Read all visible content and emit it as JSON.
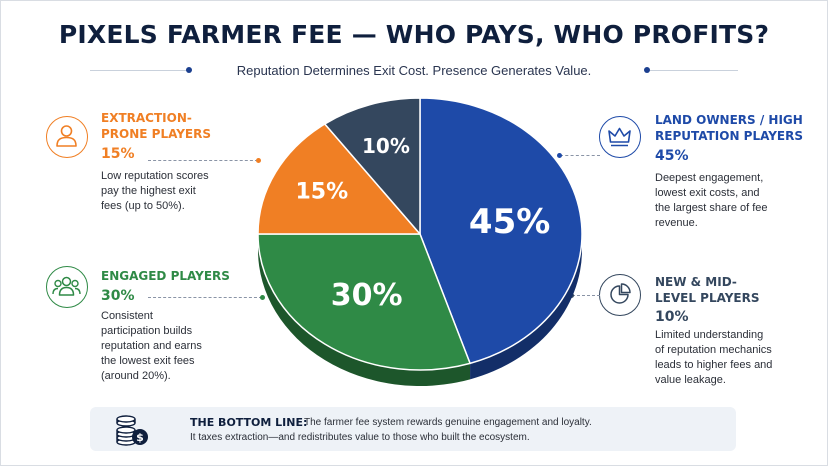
{
  "header": {
    "title": "PIXELS FARMER FEE — WHO PAYS, WHO PROFITS?",
    "subtitle": "Reputation Determines Exit Cost. Presence Generates Value."
  },
  "colors": {
    "blue": "#1e4aa8",
    "green": "#2f8a46",
    "orange": "#f07f24",
    "slate": "#34475e",
    "navy": "#0f1f3d"
  },
  "chart_data": {
    "type": "pie",
    "title": "PIXELS FARMER FEE — WHO PAYS, WHO PROFITS?",
    "slices": [
      {
        "label": "LAND OWNERS / HIGH REPUTATION PLAYERS",
        "value": 45,
        "value_label": "45%",
        "color": "#1e4aa8"
      },
      {
        "label": "ENGAGED PLAYERS",
        "value": 30,
        "value_label": "30%",
        "color": "#2f8a46"
      },
      {
        "label": "EXTRACTION-PRONE PLAYERS",
        "value": 15,
        "value_label": "15%",
        "color": "#f07f24"
      },
      {
        "label": "NEW & MID-LEVEL PLAYERS",
        "value": 10,
        "value_label": "10%",
        "color": "#34475e"
      }
    ]
  },
  "callouts": {
    "extraction": {
      "name": "EXTRACTION-PRONE PLAYERS",
      "pct": "15%",
      "desc": "Low reputation scores pay the highest exit fees (up to 50%).",
      "icon": "person-icon"
    },
    "engaged": {
      "name": "ENGAGED PLAYERS",
      "pct": "30%",
      "desc": "Consistent participation builds reputation and earns the lowest exit fees (around 20%).",
      "icon": "group-icon"
    },
    "land": {
      "name": "LAND OWNERS / HIGH REPUTATION PLAYERS",
      "pct": "45%",
      "desc": "Deepest engagement, lowest exit costs, and the largest share of fee revenue.",
      "icon": "crown-icon"
    },
    "newmid": {
      "name": "NEW & MID-LEVEL PLAYERS",
      "pct": "10%",
      "desc": "Limited understanding of reputation mechanics leads to higher fees and value leakage.",
      "icon": "pie-chart-icon"
    }
  },
  "bottom": {
    "label": "THE BOTTOM LINE:",
    "line1": "The farmer fee system rewards genuine engagement and loyalty.",
    "line2": "It taxes extraction—and redistributes value to those who built the ecosystem.",
    "icon": "coins-dollar-icon"
  }
}
